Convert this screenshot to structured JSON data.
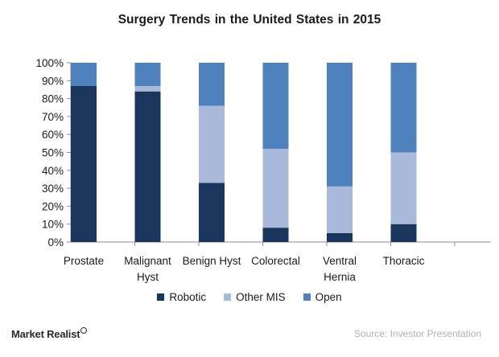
{
  "chart_data": {
    "type": "bar",
    "stacked": true,
    "title": "Surgery  Trends in the United States in 2015",
    "categories": [
      [
        "Prostate"
      ],
      [
        "Malignant",
        "Hyst"
      ],
      [
        "Benign Hyst"
      ],
      [
        "Colorectal"
      ],
      [
        "Ventral",
        "Hernia"
      ],
      [
        "Thoracic"
      ]
    ],
    "series": [
      {
        "name": "Robotic",
        "color": "#1b365d",
        "values": [
          87,
          84,
          33,
          8,
          5,
          10
        ]
      },
      {
        "name": "Other MIS",
        "color": "#a9b9d9",
        "values": [
          0,
          3,
          43,
          44,
          26,
          40
        ]
      },
      {
        "name": "Open",
        "color": "#4f81bd",
        "values": [
          13,
          13,
          24,
          48,
          69,
          50
        ]
      }
    ],
    "ylim": [
      0,
      100
    ],
    "yticks": [
      "0%",
      "10%",
      "20%",
      "30%",
      "40%",
      "50%",
      "60%",
      "70%",
      "80%",
      "90%",
      "100%"
    ],
    "xlabel": "",
    "ylabel": "",
    "legend_position": "bottom",
    "grid": false
  },
  "footer": {
    "brand": "Market Realist",
    "source": "Source: Investor Presentation"
  }
}
